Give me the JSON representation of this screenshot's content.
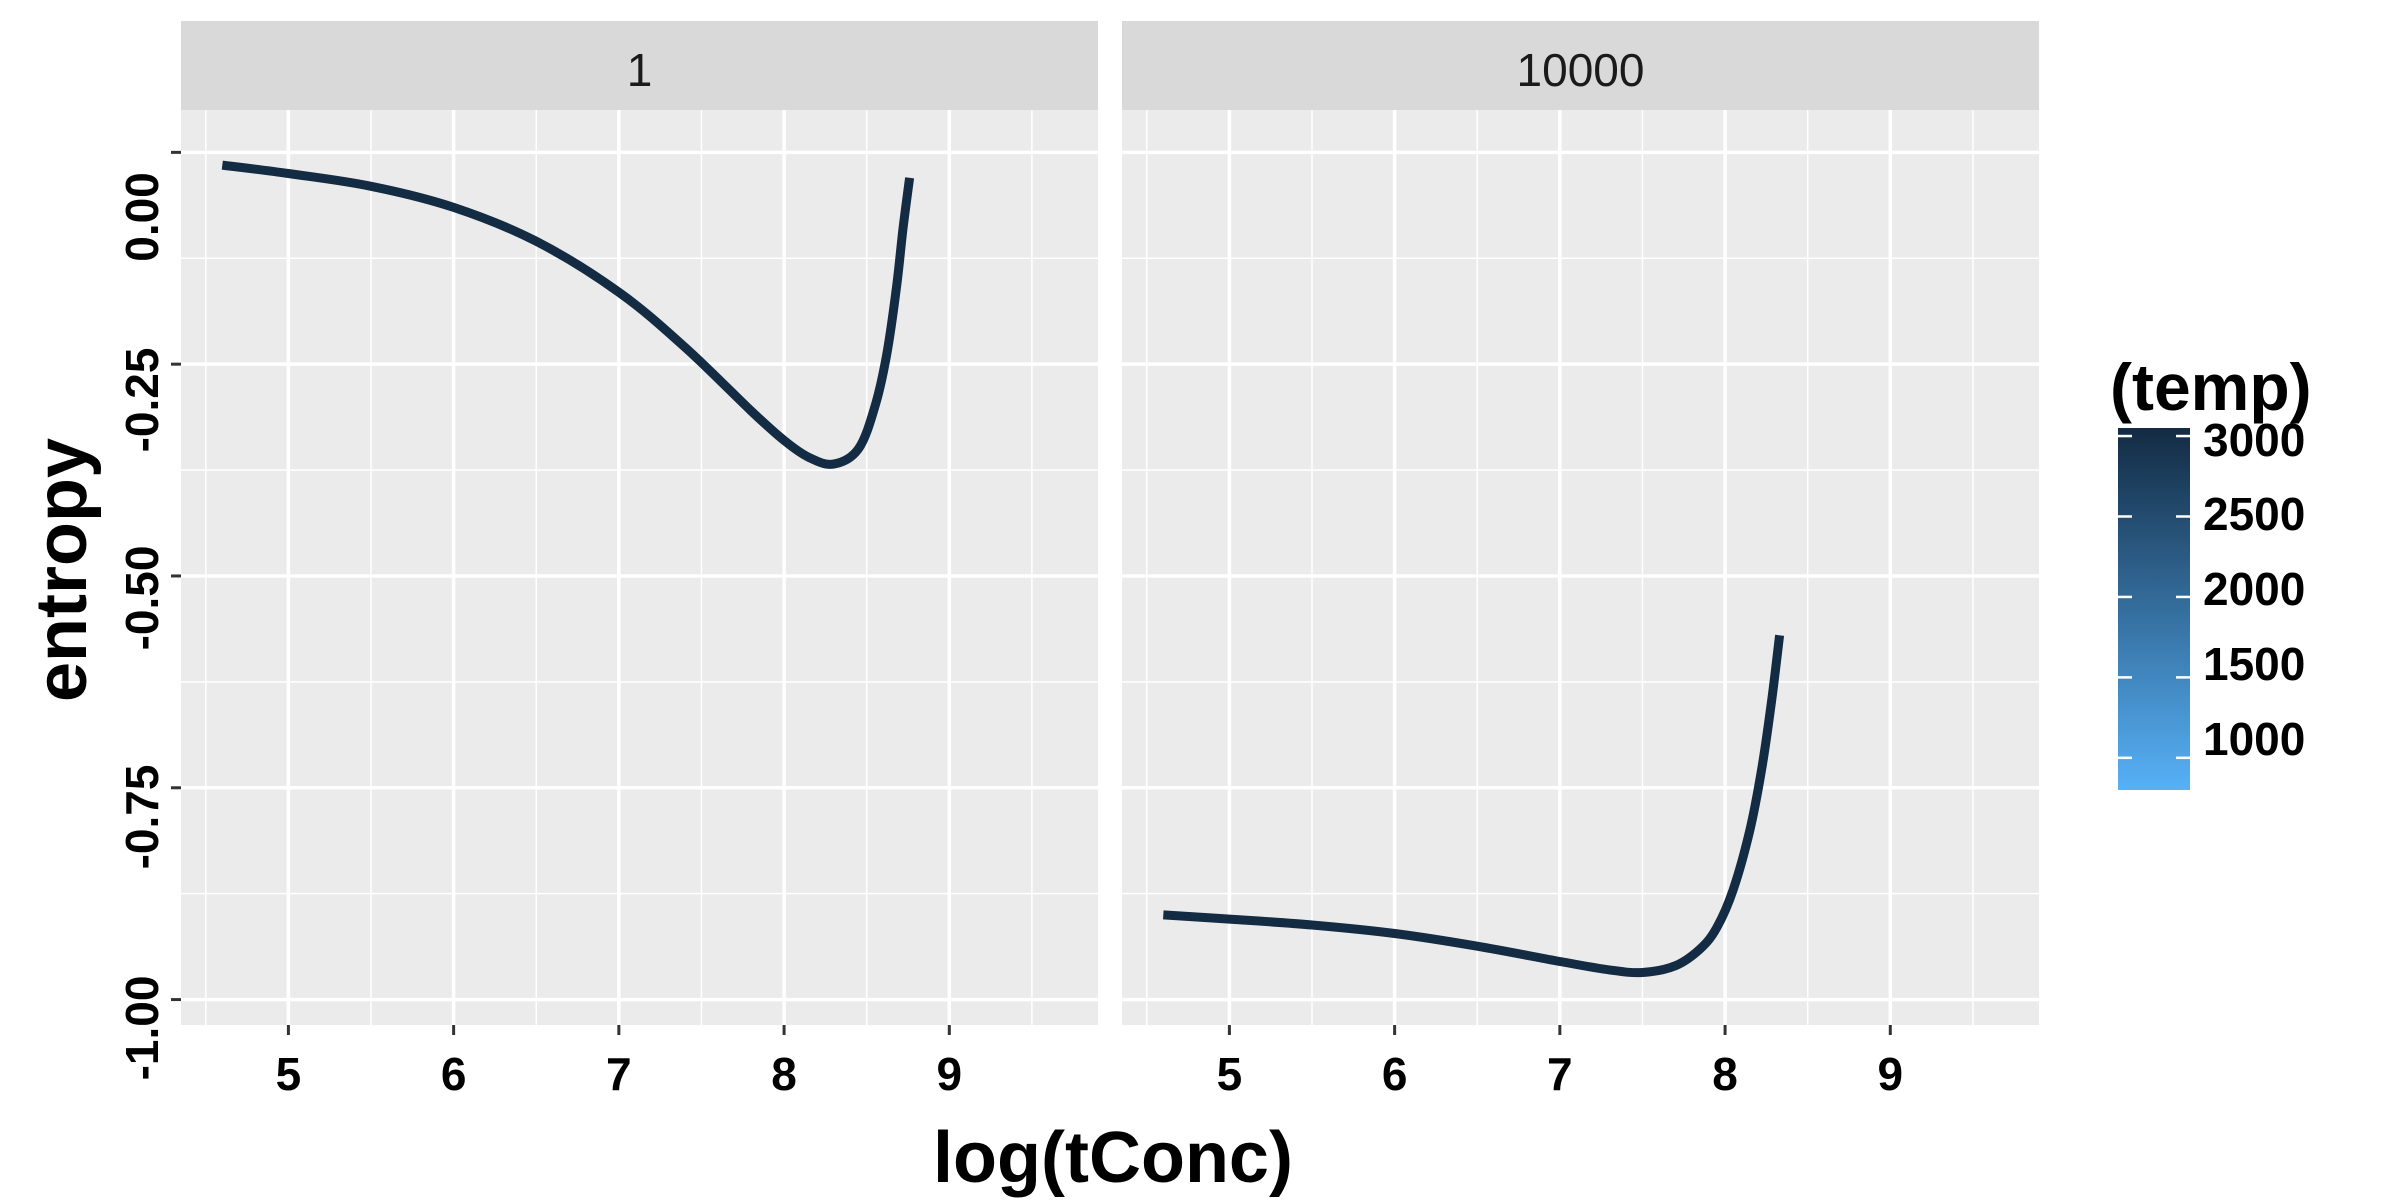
{
  "colors": {
    "panel_bg": "#EBEBEB",
    "strip_bg": "#D9D9D9",
    "grid": "#FFFFFF",
    "line": "#132B43",
    "legend_high": "#132B43",
    "legend_low": "#56B1F7"
  },
  "chart_data": {
    "type": "line",
    "xlabel": "log(tConc)",
    "ylabel": "entropy",
    "xlim": [
      4.35,
      9.9
    ],
    "ylim": [
      -1.03,
      0.05
    ],
    "x_ticks": [
      "5",
      "6",
      "7",
      "8",
      "9"
    ],
    "y_ticks": [
      "0.00",
      "-0.25",
      "-0.50",
      "-0.75",
      "-1.00"
    ],
    "grid": true,
    "facets": [
      {
        "label": "1",
        "series": [
          {
            "x": [
              4.6,
              5.0,
              5.5,
              6.0,
              6.5,
              7.0,
              7.4,
              7.8,
              8.0,
              8.15,
              8.3,
              8.45,
              8.55,
              8.62,
              8.68,
              8.72,
              8.76
            ],
            "y": [
              -0.015,
              -0.025,
              -0.04,
              -0.065,
              -0.105,
              -0.165,
              -0.23,
              -0.305,
              -0.34,
              -0.36,
              -0.368,
              -0.35,
              -0.3,
              -0.24,
              -0.16,
              -0.09,
              -0.03
            ]
          }
        ]
      },
      {
        "label": "10000",
        "series": [
          {
            "x": [
              4.6,
              5.0,
              5.5,
              6.0,
              6.5,
              7.0,
              7.3,
              7.5,
              7.7,
              7.85,
              7.95,
              8.05,
              8.15,
              8.22,
              8.28,
              8.33
            ],
            "y": [
              -0.9,
              -0.905,
              -0.912,
              -0.922,
              -0.937,
              -0.955,
              -0.965,
              -0.968,
              -0.96,
              -0.94,
              -0.915,
              -0.87,
              -0.8,
              -0.73,
              -0.65,
              -0.57
            ]
          }
        ]
      }
    ],
    "legend": {
      "title": "(temp)",
      "position": "right",
      "labels": [
        "3000",
        "2500",
        "2000",
        "1500",
        "1000"
      ],
      "values": [
        3000,
        2500,
        2000,
        1500,
        1000
      ],
      "range": [
        800,
        3050
      ]
    }
  }
}
